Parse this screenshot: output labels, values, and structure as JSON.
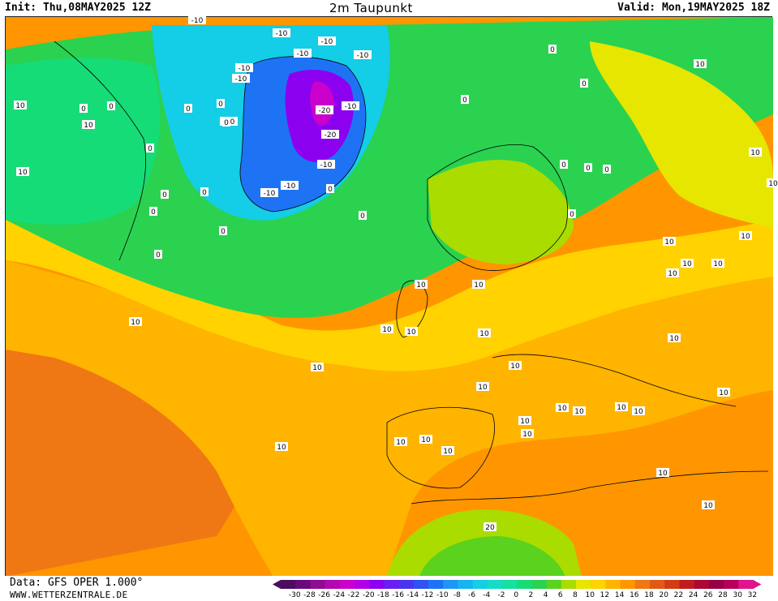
{
  "header": {
    "init": "Init: Thu,08MAY2025 12Z",
    "title": "2m Taupunkt",
    "valid": "Valid: Mon,19MAY2025 18Z"
  },
  "footer": {
    "data_source": "Data: GFS OPER 1.000°",
    "site": "WWW.WETTERZENTRALE.DE"
  },
  "legend": {
    "ticks": [
      "-30",
      "-28",
      "-26",
      "-24",
      "-22",
      "-20",
      "-18",
      "-16",
      "-14",
      "-12",
      "-10",
      "-8",
      "-6",
      "-4",
      "-2",
      "0",
      "2",
      "4",
      "6",
      "8",
      "10",
      "12",
      "14",
      "16",
      "18",
      "20",
      "22",
      "24",
      "26",
      "28",
      "30",
      "32"
    ],
    "colors": [
      "#4b0d5e",
      "#6a0a7a",
      "#8f0c93",
      "#b20aaf",
      "#cc00cc",
      "#b400e6",
      "#8c00f0",
      "#6a1ef0",
      "#4a35ef",
      "#2f52f0",
      "#1e73f5",
      "#1e96f5",
      "#16b4f0",
      "#14cde6",
      "#14dcc8",
      "#14e0a0",
      "#16dc78",
      "#2ad250",
      "#5ad21e",
      "#aadc00",
      "#e6e600",
      "#ffd200",
      "#ffb400",
      "#ff9600",
      "#f07814",
      "#e05a14",
      "#d23c14",
      "#c01e1e",
      "#aa0a32",
      "#960046",
      "#b4005a",
      "#e0148c"
    ]
  },
  "map": {
    "legend_colors_note": "",
    "contour_labels": [
      {
        "text": "-10"
      },
      {
        "text": "-10"
      },
      {
        "text": "-10"
      },
      {
        "text": "-10"
      },
      {
        "text": "-10"
      },
      {
        "text": "-10"
      },
      {
        "text": "-10"
      },
      {
        "text": "-10"
      },
      {
        "text": "-10"
      },
      {
        "text": "-20"
      },
      {
        "text": "-20"
      },
      {
        "text": "-10"
      },
      {
        "text": "-10"
      },
      {
        "text": "-10"
      },
      {
        "text": "0"
      },
      {
        "text": "0"
      },
      {
        "text": "0"
      },
      {
        "text": "0"
      },
      {
        "text": "0"
      },
      {
        "text": "0"
      },
      {
        "text": "0"
      },
      {
        "text": "0"
      },
      {
        "text": "0"
      },
      {
        "text": "0"
      },
      {
        "text": "0"
      },
      {
        "text": "0"
      },
      {
        "text": "0"
      },
      {
        "text": "0"
      },
      {
        "text": "0"
      },
      {
        "text": "0"
      },
      {
        "text": "0"
      },
      {
        "text": "0"
      },
      {
        "text": "0"
      },
      {
        "text": "0"
      },
      {
        "text": "10"
      },
      {
        "text": "10"
      },
      {
        "text": "10"
      },
      {
        "text": "10"
      },
      {
        "text": "10"
      },
      {
        "text": "10"
      },
      {
        "text": "10"
      },
      {
        "text": "10"
      },
      {
        "text": "10"
      },
      {
        "text": "10"
      },
      {
        "text": "10"
      },
      {
        "text": "10"
      },
      {
        "text": "10"
      },
      {
        "text": "10"
      },
      {
        "text": "10"
      },
      {
        "text": "10"
      },
      {
        "text": "10"
      },
      {
        "text": "10"
      },
      {
        "text": "10"
      },
      {
        "text": "10"
      },
      {
        "text": "10"
      },
      {
        "text": "10"
      },
      {
        "text": "10"
      },
      {
        "text": "10"
      },
      {
        "text": "10"
      },
      {
        "text": "10"
      },
      {
        "text": "10"
      },
      {
        "text": "10"
      },
      {
        "text": "10"
      },
      {
        "text": "10"
      },
      {
        "text": "10"
      },
      {
        "text": "10"
      },
      {
        "text": "10"
      },
      {
        "text": "10"
      },
      {
        "text": "20"
      }
    ]
  }
}
